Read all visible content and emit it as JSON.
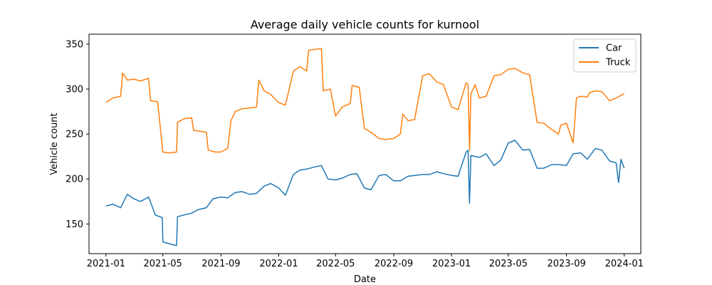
{
  "chart_data": {
    "type": "line",
    "title": "Average daily vehicle counts for kurnool",
    "xlabel": "Date",
    "ylabel": "Vehicle count",
    "xlim": [
      "2020-11-26",
      "2024-02-05"
    ],
    "ylim": [
      117,
      361
    ],
    "x_ticks": [
      "2021-01",
      "2021-05",
      "2021-09",
      "2022-01",
      "2022-05",
      "2022-09",
      "2023-01",
      "2023-05",
      "2023-09",
      "2024-01"
    ],
    "y_ticks": [
      150,
      200,
      250,
      300,
      350
    ],
    "grid": false,
    "legend": "top-right",
    "series": [
      {
        "name": "Car",
        "color": "#1f77b4",
        "points": [
          [
            "2021-01-01",
            170
          ],
          [
            "2021-01-15",
            172
          ],
          [
            "2021-02-01",
            168
          ],
          [
            "2021-02-15",
            183
          ],
          [
            "2021-03-01",
            178
          ],
          [
            "2021-03-15",
            175
          ],
          [
            "2021-04-01",
            180
          ],
          [
            "2021-04-15",
            160
          ],
          [
            "2021-04-30",
            157
          ],
          [
            "2021-05-01",
            130
          ],
          [
            "2021-05-15",
            128
          ],
          [
            "2021-05-30",
            126
          ],
          [
            "2021-06-01",
            158
          ],
          [
            "2021-06-15",
            160
          ],
          [
            "2021-07-01",
            162
          ],
          [
            "2021-07-15",
            166
          ],
          [
            "2021-08-01",
            168
          ],
          [
            "2021-08-15",
            178
          ],
          [
            "2021-09-01",
            180
          ],
          [
            "2021-09-15",
            179
          ],
          [
            "2021-10-01",
            185
          ],
          [
            "2021-10-15",
            186
          ],
          [
            "2021-11-01",
            183
          ],
          [
            "2021-11-15",
            184
          ],
          [
            "2021-12-01",
            192
          ],
          [
            "2021-12-15",
            195
          ],
          [
            "2022-01-01",
            190
          ],
          [
            "2022-01-15",
            182
          ],
          [
            "2022-02-01",
            205
          ],
          [
            "2022-02-15",
            210
          ],
          [
            "2022-03-01",
            211
          ],
          [
            "2022-03-15",
            213
          ],
          [
            "2022-04-01",
            215
          ],
          [
            "2022-04-15",
            200
          ],
          [
            "2022-05-01",
            199
          ],
          [
            "2022-05-15",
            201
          ],
          [
            "2022-06-01",
            205
          ],
          [
            "2022-06-15",
            206
          ],
          [
            "2022-07-01",
            190
          ],
          [
            "2022-07-15",
            188
          ],
          [
            "2022-08-01",
            204
          ],
          [
            "2022-08-15",
            205
          ],
          [
            "2022-09-01",
            198
          ],
          [
            "2022-09-15",
            198
          ],
          [
            "2022-10-01",
            203
          ],
          [
            "2022-10-15",
            204
          ],
          [
            "2022-11-01",
            205
          ],
          [
            "2022-11-15",
            205
          ],
          [
            "2022-12-01",
            208
          ],
          [
            "2022-12-15",
            206
          ],
          [
            "2023-01-01",
            204
          ],
          [
            "2023-01-15",
            203
          ],
          [
            "2023-02-01",
            230
          ],
          [
            "2023-02-05",
            232
          ],
          [
            "2023-02-08",
            173
          ],
          [
            "2023-02-11",
            226
          ],
          [
            "2023-03-01",
            224
          ],
          [
            "2023-03-15",
            228
          ],
          [
            "2023-04-01",
            215
          ],
          [
            "2023-04-15",
            221
          ],
          [
            "2023-05-01",
            240
          ],
          [
            "2023-05-15",
            243
          ],
          [
            "2023-06-01",
            232
          ],
          [
            "2023-06-15",
            233
          ],
          [
            "2023-07-01",
            212
          ],
          [
            "2023-07-15",
            212
          ],
          [
            "2023-08-01",
            216
          ],
          [
            "2023-08-15",
            216
          ],
          [
            "2023-09-01",
            215
          ],
          [
            "2023-09-15",
            228
          ],
          [
            "2023-10-01",
            229
          ],
          [
            "2023-10-15",
            222
          ],
          [
            "2023-11-01",
            234
          ],
          [
            "2023-11-15",
            232
          ],
          [
            "2023-12-01",
            220
          ],
          [
            "2023-12-15",
            218
          ],
          [
            "2023-12-20",
            196
          ],
          [
            "2023-12-25",
            222
          ],
          [
            "2024-01-01",
            212
          ]
        ]
      },
      {
        "name": "Truck",
        "color": "#ff7f0e",
        "points": [
          [
            "2021-01-01",
            285
          ],
          [
            "2021-01-15",
            290
          ],
          [
            "2021-02-01",
            292
          ],
          [
            "2021-02-05",
            318
          ],
          [
            "2021-02-15",
            310
          ],
          [
            "2021-03-01",
            311
          ],
          [
            "2021-03-15",
            309
          ],
          [
            "2021-04-01",
            312
          ],
          [
            "2021-04-05",
            287
          ],
          [
            "2021-04-20",
            286
          ],
          [
            "2021-05-01",
            230
          ],
          [
            "2021-05-15",
            229
          ],
          [
            "2021-05-30",
            230
          ],
          [
            "2021-06-01",
            263
          ],
          [
            "2021-06-15",
            267
          ],
          [
            "2021-07-01",
            268
          ],
          [
            "2021-07-05",
            254
          ],
          [
            "2021-07-20",
            253
          ],
          [
            "2021-08-01",
            252
          ],
          [
            "2021-08-05",
            232
          ],
          [
            "2021-08-20",
            230
          ],
          [
            "2021-09-01",
            230
          ],
          [
            "2021-09-15",
            234
          ],
          [
            "2021-09-22",
            265
          ],
          [
            "2021-10-01",
            275
          ],
          [
            "2021-10-15",
            278
          ],
          [
            "2021-11-01",
            279
          ],
          [
            "2021-11-15",
            280
          ],
          [
            "2021-11-20",
            310
          ],
          [
            "2021-12-01",
            298
          ],
          [
            "2021-12-15",
            294
          ],
          [
            "2022-01-01",
            285
          ],
          [
            "2022-01-15",
            282
          ],
          [
            "2022-02-01",
            320
          ],
          [
            "2022-02-15",
            325
          ],
          [
            "2022-03-01",
            320
          ],
          [
            "2022-03-05",
            343
          ],
          [
            "2022-03-15",
            344
          ],
          [
            "2022-04-01",
            345
          ],
          [
            "2022-04-05",
            298
          ],
          [
            "2022-04-20",
            300
          ],
          [
            "2022-05-01",
            270
          ],
          [
            "2022-05-15",
            280
          ],
          [
            "2022-06-01",
            284
          ],
          [
            "2022-06-05",
            304
          ],
          [
            "2022-06-20",
            302
          ],
          [
            "2022-07-01",
            256
          ],
          [
            "2022-07-15",
            252
          ],
          [
            "2022-08-01",
            245
          ],
          [
            "2022-08-15",
            244
          ],
          [
            "2022-09-01",
            245
          ],
          [
            "2022-09-15",
            250
          ],
          [
            "2022-09-20",
            272
          ],
          [
            "2022-10-01",
            265
          ],
          [
            "2022-10-15",
            266
          ],
          [
            "2022-11-01",
            315
          ],
          [
            "2022-11-15",
            317
          ],
          [
            "2022-12-01",
            308
          ],
          [
            "2022-12-15",
            305
          ],
          [
            "2023-01-01",
            280
          ],
          [
            "2023-01-15",
            277
          ],
          [
            "2023-02-01",
            307
          ],
          [
            "2023-02-05",
            305
          ],
          [
            "2023-02-08",
            232
          ],
          [
            "2023-02-11",
            295
          ],
          [
            "2023-02-20",
            305
          ],
          [
            "2023-03-01",
            290
          ],
          [
            "2023-03-15",
            292
          ],
          [
            "2023-04-01",
            315
          ],
          [
            "2023-04-15",
            316
          ],
          [
            "2023-05-01",
            322
          ],
          [
            "2023-05-15",
            323
          ],
          [
            "2023-06-01",
            318
          ],
          [
            "2023-06-15",
            316
          ],
          [
            "2023-07-01",
            263
          ],
          [
            "2023-07-15",
            262
          ],
          [
            "2023-08-01",
            255
          ],
          [
            "2023-08-15",
            250
          ],
          [
            "2023-08-20",
            260
          ],
          [
            "2023-09-01",
            262
          ],
          [
            "2023-09-15",
            240
          ],
          [
            "2023-09-22",
            290
          ],
          [
            "2023-10-01",
            292
          ],
          [
            "2023-10-15",
            291
          ],
          [
            "2023-10-20",
            296
          ],
          [
            "2023-11-01",
            298
          ],
          [
            "2023-11-15",
            297
          ],
          [
            "2023-12-01",
            287
          ],
          [
            "2023-12-15",
            290
          ],
          [
            "2024-01-01",
            295
          ]
        ]
      }
    ]
  }
}
